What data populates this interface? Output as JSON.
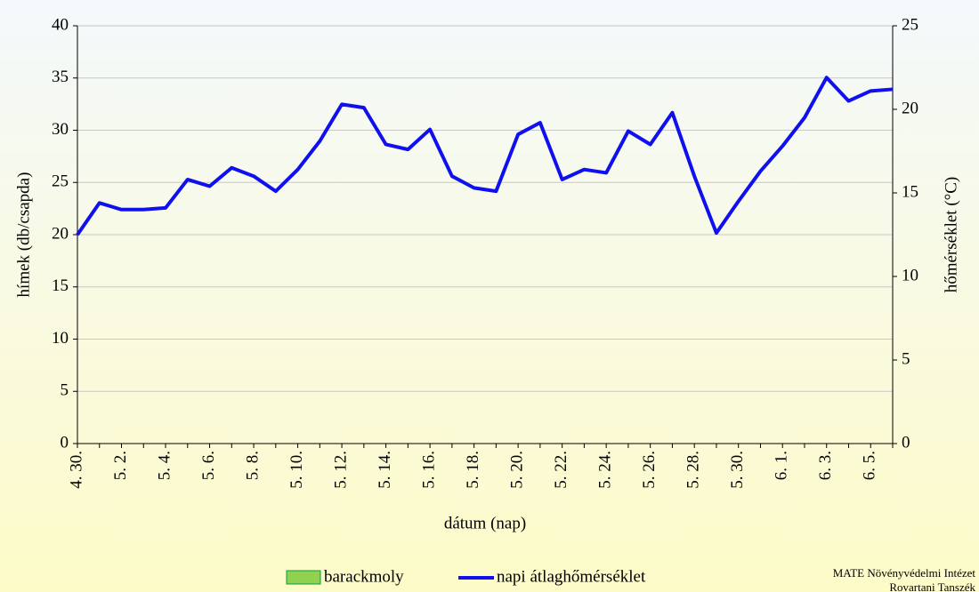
{
  "chart_data": {
    "type": "bar_line",
    "x_label": "dátum (nap)",
    "y_label": "hímek (db/csapda)",
    "y2_label": "hőmérséklet (°C)",
    "categories": [
      "4. 30.",
      null,
      "5. 2.",
      null,
      "5. 4.",
      null,
      "5. 6.",
      null,
      "5. 8.",
      null,
      "5. 10.",
      null,
      "5. 12.",
      null,
      "5. 14.",
      null,
      "5. 16.",
      null,
      "5. 18.",
      null,
      "5. 20.",
      null,
      "5. 22.",
      null,
      "5. 24.",
      null,
      "5. 26.",
      null,
      "5. 28.",
      null,
      "5. 30.",
      null,
      "6. 1.",
      null,
      "6. 3.",
      null,
      "6. 5.",
      null
    ],
    "series": [
      {
        "name": "barackmoly",
        "color": "#92d050",
        "values": [
          0,
          0,
          0,
          0,
          0,
          0,
          0,
          0,
          0,
          0,
          0,
          0,
          0,
          0,
          0,
          0,
          0,
          0,
          0,
          0,
          0,
          0,
          0,
          0,
          0,
          0,
          0,
          0,
          0,
          0,
          0,
          0,
          0,
          0,
          0,
          0,
          0,
          0
        ]
      },
      {
        "name": "napi átlaghőmérséklet",
        "color": "#1010ee",
        "axis": "y2",
        "values": [
          12.5,
          14.4,
          14.0,
          14.0,
          14.1,
          15.8,
          15.4,
          16.5,
          16.0,
          15.1,
          16.4,
          18.1,
          20.3,
          20.1,
          17.9,
          17.6,
          18.8,
          16.0,
          15.3,
          15.1,
          18.5,
          19.2,
          15.8,
          16.4,
          16.2,
          18.7,
          17.9,
          19.8,
          16.0,
          12.6,
          14.5,
          16.3,
          17.8,
          19.5,
          21.9,
          20.5,
          21.1,
          21.2
        ]
      }
    ],
    "ylim": [
      0,
      40
    ],
    "yticks": [
      0,
      5,
      10,
      15,
      20,
      25,
      30,
      35,
      40
    ],
    "y2lim": [
      0,
      25
    ],
    "y2ticks": [
      0,
      5,
      10,
      15,
      20,
      25
    ],
    "grid": true,
    "annotations": [
      "MATE Növényvédelmi Intézet",
      "Rovartani Tanszék"
    ]
  }
}
